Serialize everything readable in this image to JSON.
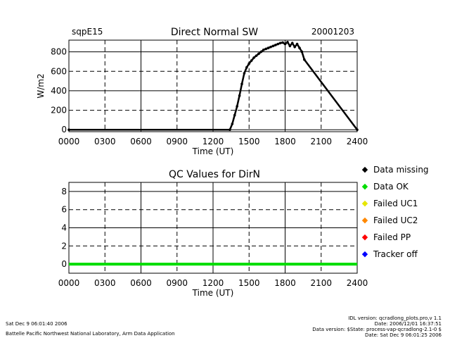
{
  "chart_data": [
    {
      "type": "scatter",
      "site": "sqpE15",
      "title": "Direct Normal SW",
      "date": "20001203",
      "ylabel": "W/m2",
      "xlabel": "Time (UT)",
      "xlim": [
        0,
        24
      ],
      "ylim": [
        -20,
        920
      ],
      "x_ticks": [
        0,
        3,
        6,
        9,
        12,
        15,
        18,
        21,
        24
      ],
      "x_tick_labels": [
        "0000",
        "0300",
        "0600",
        "0900",
        "1200",
        "1500",
        "1800",
        "2100",
        "2400"
      ],
      "y_ticks": [
        0,
        200,
        400,
        600,
        800
      ],
      "y_tick_labels": [
        "0",
        "200",
        "400",
        "600",
        "800"
      ],
      "grid": true,
      "series": [
        {
          "color": "#000000",
          "x": [
            0,
            13.4,
            13.6,
            13.8,
            14.0,
            14.2,
            14.4,
            14.6,
            14.8,
            15.0,
            15.2,
            15.4,
            15.6,
            15.8,
            16.0,
            16.2,
            16.4,
            16.6,
            16.8,
            17.0,
            17.2,
            17.4,
            17.6,
            17.8,
            18.0,
            18.2,
            18.4,
            18.6,
            18.8,
            19.0,
            19.2,
            19.4,
            19.6,
            24
          ],
          "y": [
            0,
            0,
            60,
            150,
            240,
            350,
            470,
            580,
            640,
            680,
            710,
            740,
            760,
            780,
            800,
            820,
            830,
            840,
            850,
            860,
            870,
            880,
            890,
            895,
            880,
            900,
            860,
            890,
            850,
            880,
            840,
            800,
            720,
            0
          ]
        }
      ],
      "annotations": []
    },
    {
      "type": "line",
      "title": "QC Values for DirN",
      "xlabel": "Time (UT)",
      "xlim": [
        0,
        24
      ],
      "ylim": [
        -1,
        9
      ],
      "x_ticks": [
        0,
        3,
        6,
        9,
        12,
        15,
        18,
        21,
        24
      ],
      "x_tick_labels": [
        "0000",
        "0300",
        "0600",
        "0900",
        "1200",
        "1500",
        "1800",
        "2100",
        "2400"
      ],
      "y_ticks": [
        0,
        2,
        4,
        6,
        8
      ],
      "y_tick_labels": [
        "0",
        "2",
        "4",
        "6",
        "8"
      ],
      "grid": true,
      "series": [
        {
          "color": "#00dd00",
          "x": [
            0,
            24
          ],
          "y": [
            0,
            0
          ]
        }
      ]
    }
  ],
  "legend": [
    {
      "label": "Data missing",
      "color": "#000000"
    },
    {
      "label": "Data OK",
      "color": "#00dd00"
    },
    {
      "label": "Failed UC1",
      "color": "#e6e600"
    },
    {
      "label": "Failed UC2",
      "color": "#ff8800"
    },
    {
      "label": "Failed PP",
      "color": "#ff0000"
    },
    {
      "label": "Tracker off",
      "color": "#0000ff"
    }
  ],
  "footer": {
    "timestamp": "Sat Dec  9 06:01:40 2006",
    "lab": "Battelle Pacific Northwest National Laboratory, Arm Data Application",
    "idl_version": "IDL version: qcradlong_plots.pro,v 1.1",
    "idl_date": "Date: 2006/12/01 16:37:51",
    "data_version": "Data version: $State: process-vap-qcradlong-2.1-0 $",
    "data_date": "Date: Sat Dec  9 06:01:25 2006"
  }
}
